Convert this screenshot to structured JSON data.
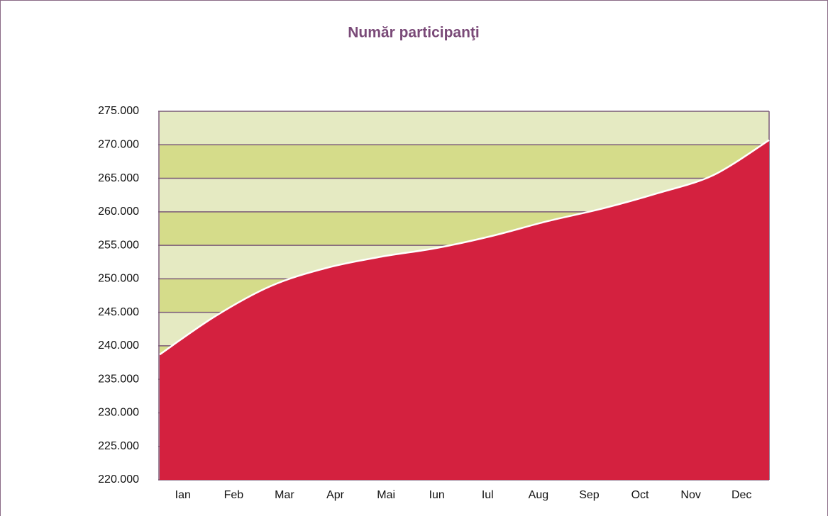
{
  "chart_data": {
    "type": "area",
    "title": "Număr participanţi",
    "categories": [
      "Ian",
      "Feb",
      "Mar",
      "Apr",
      "Mai",
      "Iun",
      "Iul",
      "Aug",
      "Sep",
      "Oct",
      "Nov",
      "Dec"
    ],
    "values": [
      238700,
      244400,
      248900,
      251600,
      253300,
      254600,
      256400,
      258600,
      260500,
      262800,
      265500,
      270700
    ],
    "color": "#d4213f",
    "ylim": [
      220000,
      275000
    ],
    "yticks": [
      {
        "value": 220000,
        "label": "220.000"
      },
      {
        "value": 225000,
        "label": "225.000"
      },
      {
        "value": 230000,
        "label": "230.000"
      },
      {
        "value": 235000,
        "label": "235.000"
      },
      {
        "value": 240000,
        "label": "240.000"
      },
      {
        "value": 245000,
        "label": "245.000"
      },
      {
        "value": 250000,
        "label": "250.000"
      },
      {
        "value": 255000,
        "label": "255.000"
      },
      {
        "value": 260000,
        "label": "260.000"
      },
      {
        "value": 265000,
        "label": "265.000"
      },
      {
        "value": 270000,
        "label": "270.000"
      },
      {
        "value": 275000,
        "label": "275.000"
      }
    ],
    "grid": true
  }
}
